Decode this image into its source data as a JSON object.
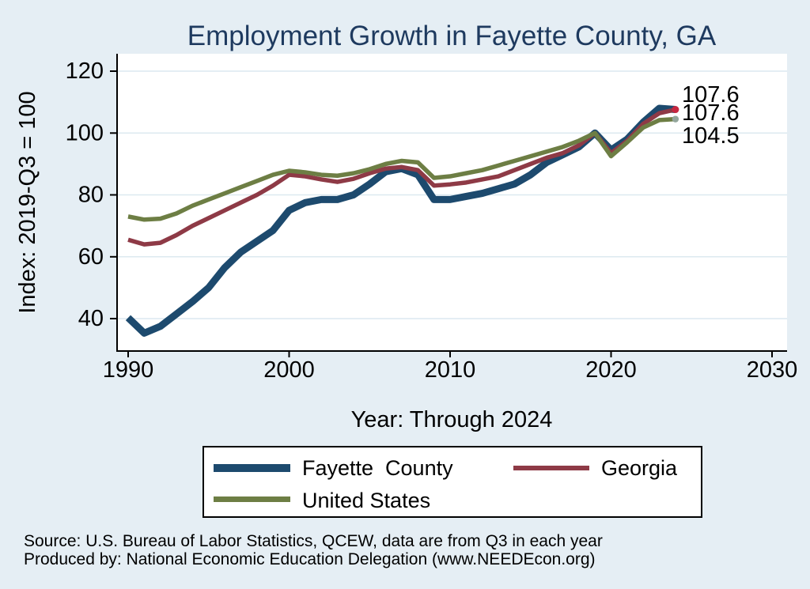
{
  "page": {
    "background_color": "#e5eef4",
    "title_color": "#1e3a5f"
  },
  "chart_data": {
    "type": "line",
    "title": "Employment Growth in Fayette County, GA",
    "xlabel": "Year: Through 2024",
    "ylabel": "Index: 2019-Q3 = 100",
    "xlim": [
      1990,
      2030
    ],
    "ylim": [
      40,
      120
    ],
    "x_ticks": [
      1990,
      2000,
      2010,
      2020,
      2030
    ],
    "y_ticks": [
      40,
      60,
      80,
      100,
      120
    ],
    "grid": "horizontal light gridlines on white plot area",
    "legend_position": "bottom-center boxed",
    "x": [
      1990,
      1991,
      1992,
      1993,
      1994,
      1995,
      1996,
      1997,
      1998,
      1999,
      2000,
      2001,
      2002,
      2003,
      2004,
      2005,
      2006,
      2007,
      2008,
      2009,
      2010,
      2011,
      2012,
      2013,
      2014,
      2015,
      2016,
      2017,
      2018,
      2019,
      2020,
      2021,
      2022,
      2023,
      2024
    ],
    "series": [
      {
        "name": "Fayette  County",
        "color": "#1d4a6e",
        "width": 9,
        "end_label": "107.6",
        "values": [
          40.3,
          35.3,
          37.5,
          41.5,
          45.5,
          50,
          56.5,
          61.5,
          65,
          68.5,
          75,
          77.5,
          78.5,
          78.5,
          80,
          83.5,
          87.5,
          88.5,
          86.5,
          78.5,
          78.5,
          79.5,
          80.5,
          82,
          83.5,
          86.5,
          90.5,
          93,
          95.5,
          100,
          94.5,
          98,
          103.5,
          108,
          107.6
        ]
      },
      {
        "name": "Georgia",
        "color": "#8e3a46",
        "width": 5.5,
        "end_label": "107.6",
        "end_marker_color": "#c62740",
        "values": [
          65.5,
          64,
          64.5,
          67,
          70,
          72.5,
          75,
          77.5,
          80,
          83,
          86.5,
          86,
          85,
          84.2,
          85.2,
          87,
          88.5,
          89,
          88,
          83,
          83.4,
          84,
          85,
          86,
          88,
          90,
          92,
          93.5,
          96,
          100,
          93.5,
          97.5,
          103,
          106.4,
          107.6
        ]
      },
      {
        "name": "United States",
        "color": "#6d7e44",
        "width": 5.5,
        "end_label": "104.5",
        "end_marker_color": "#93a69c",
        "values": [
          73,
          72,
          72.3,
          74,
          76.5,
          78.5,
          80.5,
          82.5,
          84.5,
          86.5,
          87.8,
          87.3,
          86.5,
          86.2,
          87,
          88.3,
          90,
          91,
          90.5,
          85.5,
          86,
          87,
          88,
          89.5,
          91,
          92.5,
          94,
          95.5,
          97.5,
          100,
          92.5,
          97,
          101.8,
          104.2,
          104.5
        ]
      }
    ]
  },
  "footer": {
    "line1": "Source: U.S. Bureau of Labor Statistics, QCEW, data are from Q3 in each year",
    "line2": "Produced by: National Economic Education Delegation (www.NEEDEcon.org)"
  }
}
